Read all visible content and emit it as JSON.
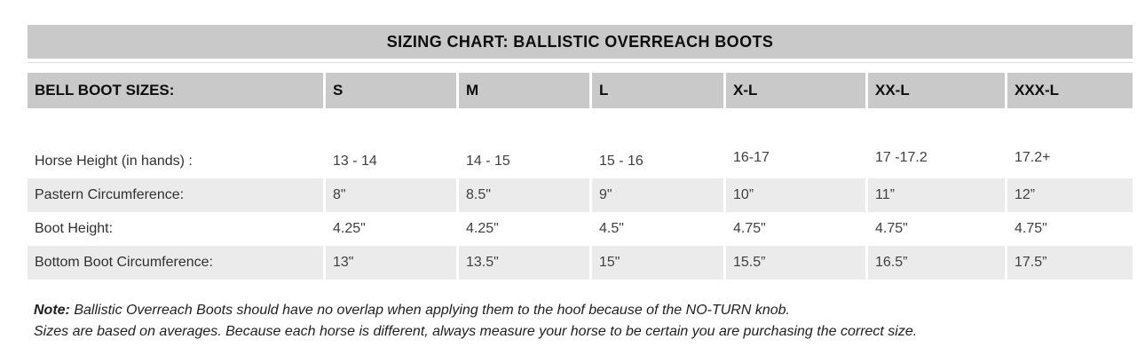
{
  "title": "SIZING CHART: BALLISTIC OVERREACH BOOTS",
  "table": {
    "header": {
      "label": "BELL BOOT SIZES:",
      "sizes": [
        "S",
        "M",
        "L",
        "X-L",
        "XX-L",
        "XXX-L"
      ]
    },
    "rows": [
      {
        "label": "Horse Height (in hands) :",
        "values": [
          "13 - 14",
          "14 - 15",
          "15 - 16",
          "16-17",
          "17 -17.2",
          "17.2+"
        ]
      },
      {
        "label": "Pastern Circumference:",
        "values": [
          "8\"",
          "8.5\"",
          "9\"",
          "10”",
          "11”",
          "12”"
        ]
      },
      {
        "label": "Boot Height:",
        "values": [
          "4.25\"",
          "4.25\"",
          "4.5\"",
          "4.75\"",
          "4.75\"",
          "4.75\""
        ]
      },
      {
        "label": "Bottom Boot Circumference:",
        "values": [
          "13\"",
          "13.5\"",
          "15\"",
          "15.5”",
          "16.5”",
          "17.5”"
        ]
      }
    ]
  },
  "note": {
    "label": "Note:",
    "line1": " Ballistic Overreach Boots should have no overlap when applying them to the hoof because of the NO-TURN knob.",
    "line2": "Sizes are based on averages. Because each horse is different, always measure your horse to be certain you are purchasing the correct size."
  },
  "colors": {
    "header_bg": "#c9c9c9",
    "stripe_bg": "#ebebeb",
    "heading_text": "#0d0d0d",
    "label_text": "#303030",
    "value_text": "#404040",
    "note_text": "#1f1f1f"
  }
}
